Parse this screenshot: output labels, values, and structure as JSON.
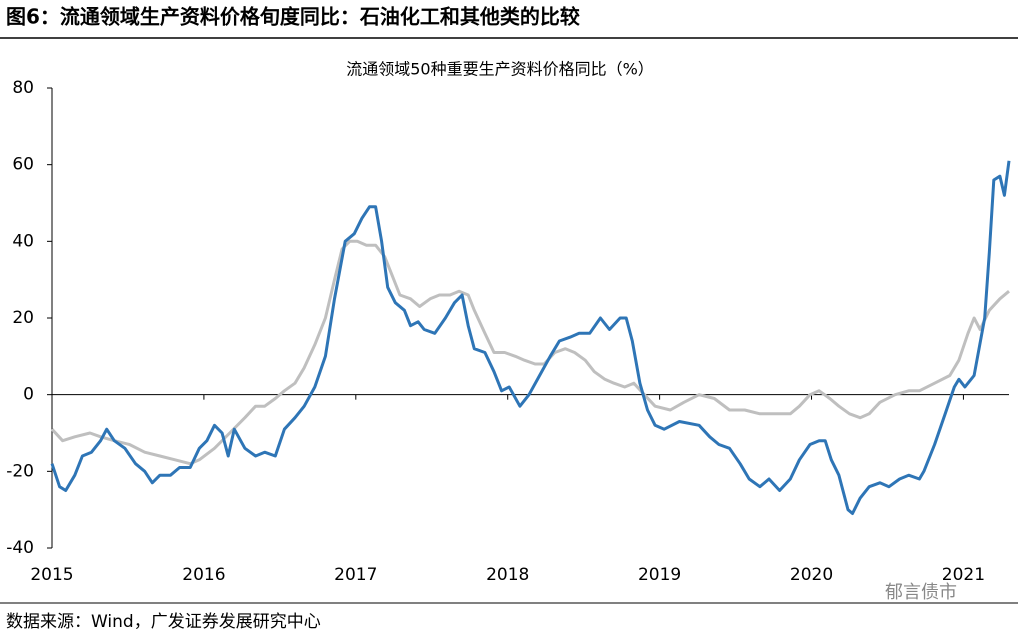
{
  "figure_title": "图6：流通领域生产资料价格旬度同比：石油化工和其他类的比较",
  "source": "数据来源：Wind，广发证券发展研究中心",
  "watermark": "郁言债市",
  "chart_data": {
    "type": "line",
    "title": "流通领域50种重要生产资料价格同比（%）",
    "xlim": [
      2015,
      2021.3
    ],
    "xticks": [
      2015,
      2016,
      2017,
      2018,
      2019,
      2020,
      2021
    ],
    "ylim": [
      -40,
      80
    ],
    "yticks": [
      -40,
      -20,
      0,
      20,
      40,
      60,
      80
    ],
    "series": [
      {
        "color": "#2e75b6",
        "x": [
          2015.0,
          2015.05,
          2015.09,
          2015.15,
          2015.2,
          2015.26,
          2015.32,
          2015.36,
          2015.41,
          2015.48,
          2015.55,
          2015.61,
          2015.66,
          2015.71,
          2015.78,
          2015.84,
          2015.91,
          2015.97,
          2016.02,
          2016.07,
          2016.12,
          2016.16,
          2016.2,
          2016.27,
          2016.34,
          2016.4,
          2016.47,
          2016.53,
          2016.6,
          2016.66,
          2016.73,
          2016.8,
          2016.86,
          2016.93,
          2016.99,
          2017.04,
          2017.09,
          2017.13,
          2017.17,
          2017.21,
          2017.26,
          2017.32,
          2017.36,
          2017.41,
          2017.45,
          2017.52,
          2017.59,
          2017.65,
          2017.7,
          2017.74,
          2017.78,
          2017.85,
          2017.91,
          2017.96,
          2018.01,
          2018.08,
          2018.14,
          2018.21,
          2018.28,
          2018.34,
          2018.41,
          2018.47,
          2018.54,
          2018.61,
          2018.67,
          2018.74,
          2018.78,
          2018.82,
          2018.87,
          2018.92,
          2018.97,
          2019.03,
          2019.13,
          2019.26,
          2019.33,
          2019.39,
          2019.46,
          2019.53,
          2019.59,
          2019.66,
          2019.72,
          2019.79,
          2019.86,
          2019.92,
          2019.99,
          2020.05,
          2020.09,
          2020.13,
          2020.18,
          2020.24,
          2020.27,
          2020.32,
          2020.38,
          2020.45,
          2020.51,
          2020.58,
          2020.64,
          2020.71,
          2020.74,
          2020.81,
          2020.88,
          2020.94,
          2020.97,
          2021.01,
          2021.07,
          2021.14,
          2021.17,
          2021.2,
          2021.24,
          2021.27,
          2021.3
        ],
        "values": [
          -18,
          -24,
          -25,
          -21,
          -16,
          -15,
          -12,
          -9,
          -12,
          -14,
          -18,
          -20,
          -23,
          -21,
          -21,
          -19,
          -19,
          -14,
          -12,
          -8,
          -10,
          -16,
          -9,
          -14,
          -16,
          -15,
          -16,
          -9,
          -6,
          -3,
          2,
          10,
          25,
          40,
          42,
          46,
          49,
          49,
          40,
          28,
          24,
          22,
          18,
          19,
          17,
          16,
          20,
          24,
          26,
          18,
          12,
          11,
          6,
          1,
          2,
          -3,
          0,
          5,
          10,
          14,
          15,
          16,
          16,
          20,
          17,
          20,
          20,
          14,
          3,
          -4,
          -8,
          -9,
          -7,
          -8,
          -11,
          -13,
          -14,
          -18,
          -22,
          -24,
          -22,
          -25,
          -22,
          -17,
          -13,
          -12,
          -12,
          -17,
          -21,
          -30,
          -31,
          -27,
          -24,
          -23,
          -24,
          -22,
          -21,
          -22,
          -20,
          -13,
          -5,
          2,
          4,
          2,
          5,
          20,
          37,
          56,
          57,
          52,
          61
        ]
      },
      {
        "color": "#bfbfbf",
        "x": [
          2015.0,
          2015.07,
          2015.15,
          2015.25,
          2015.32,
          2015.41,
          2015.51,
          2015.61,
          2015.71,
          2015.81,
          2015.91,
          2015.97,
          2016.07,
          2016.17,
          2016.27,
          2016.34,
          2016.4,
          2016.47,
          2016.53,
          2016.6,
          2016.66,
          2016.73,
          2016.8,
          2016.86,
          2016.91,
          2016.96,
          2017.01,
          2017.07,
          2017.13,
          2017.19,
          2017.24,
          2017.29,
          2017.36,
          2017.42,
          2017.49,
          2017.55,
          2017.62,
          2017.68,
          2017.74,
          2017.78,
          2017.85,
          2017.91,
          2017.98,
          2018.05,
          2018.11,
          2018.18,
          2018.24,
          2018.31,
          2018.38,
          2018.44,
          2018.51,
          2018.57,
          2018.64,
          2018.7,
          2018.77,
          2018.83,
          2018.9,
          2018.97,
          2019.07,
          2019.16,
          2019.26,
          2019.36,
          2019.46,
          2019.56,
          2019.66,
          2019.76,
          2019.86,
          2019.92,
          2019.99,
          2020.05,
          2020.12,
          2020.18,
          2020.25,
          2020.32,
          2020.38,
          2020.45,
          2020.55,
          2020.64,
          2020.71,
          2020.81,
          2020.91,
          2020.97,
          2021.03,
          2021.07,
          2021.11,
          2021.17,
          2021.24,
          2021.3
        ],
        "values": [
          -9,
          -12,
          -11,
          -10,
          -11,
          -12,
          -13,
          -15,
          -16,
          -17,
          -18,
          -17,
          -14,
          -10,
          -6,
          -3,
          -3,
          -1,
          1,
          3,
          7,
          13,
          20,
          30,
          38,
          40,
          40,
          39,
          39,
          36,
          31,
          26,
          25,
          23,
          25,
          26,
          26,
          27,
          26,
          22,
          16,
          11,
          11,
          10,
          9,
          8,
          8,
          11,
          12,
          11,
          9,
          6,
          4,
          3,
          2,
          3,
          0,
          -3,
          -4,
          -2,
          0,
          -1,
          -4,
          -4,
          -5,
          -5,
          -5,
          -3,
          0,
          1,
          -1,
          -3,
          -5,
          -6,
          -5,
          -2,
          0,
          1,
          1,
          3,
          5,
          9,
          16,
          20,
          17,
          22,
          25,
          27
        ]
      }
    ]
  }
}
